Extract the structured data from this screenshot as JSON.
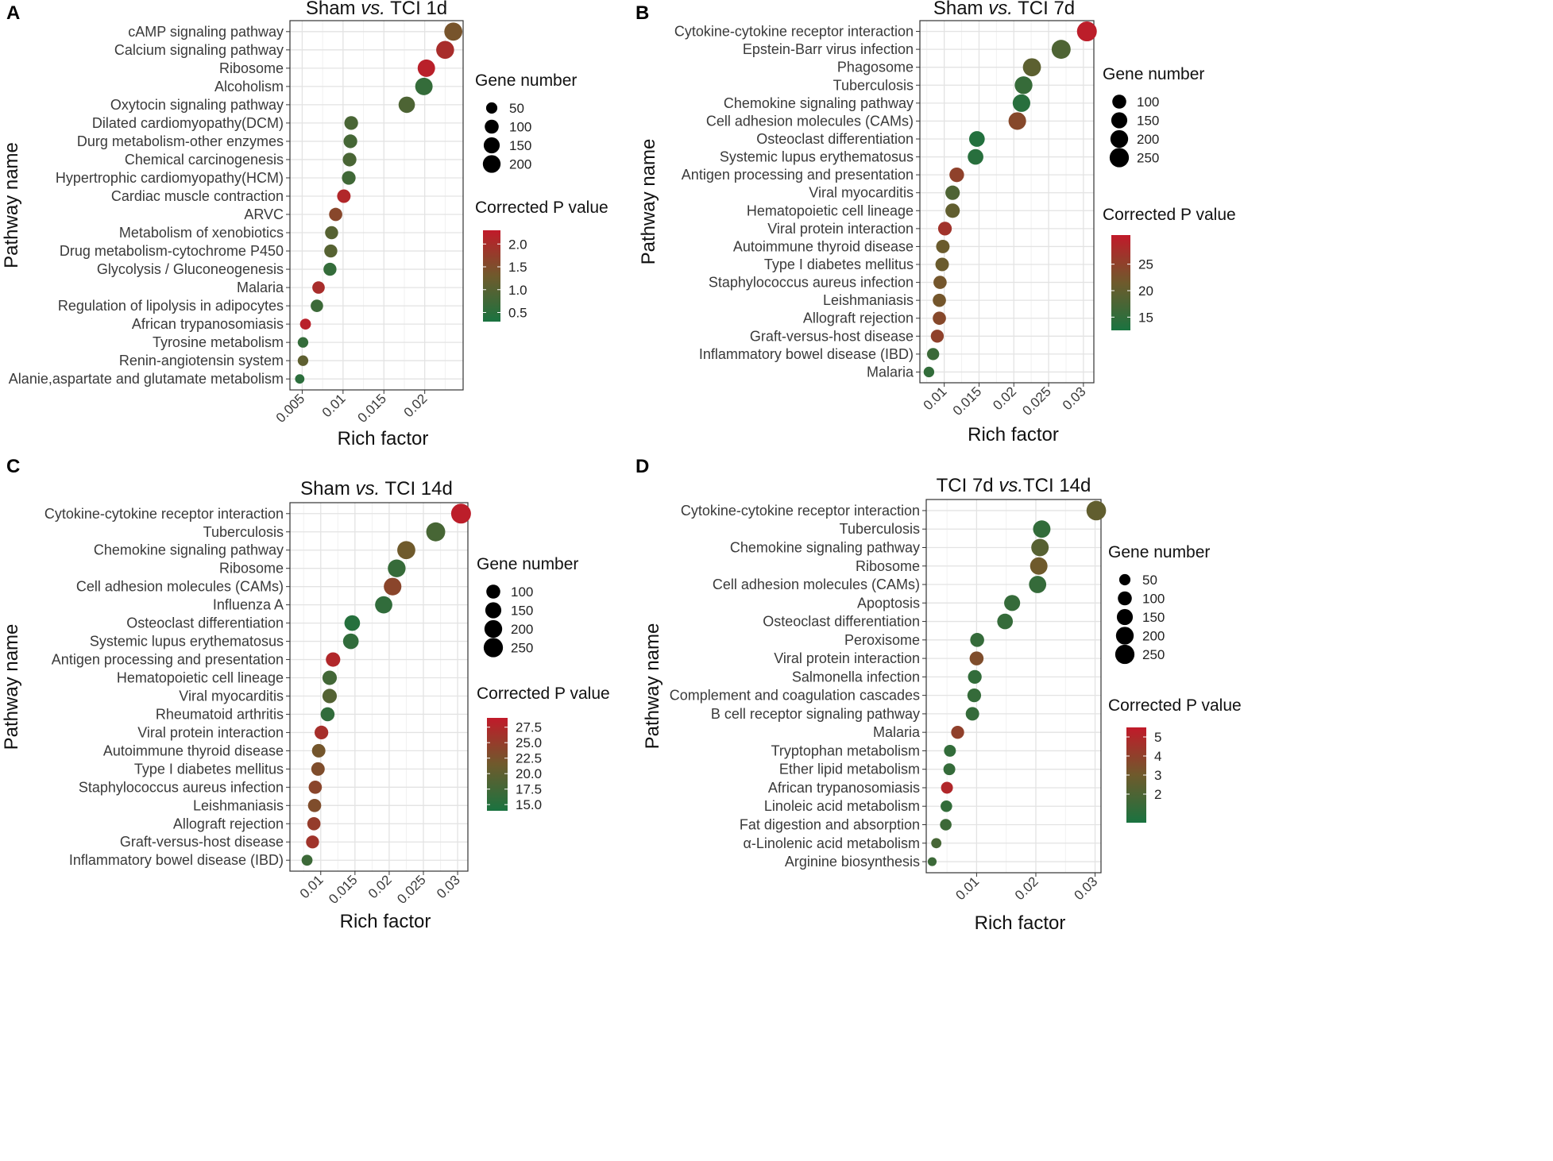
{
  "chart_data": [
    {
      "type": "scatter",
      "panel_label": "A",
      "title": "Sham vs. TCI 1d",
      "title_parts": [
        "Sham ",
        "vs.",
        " TCI 1d"
      ],
      "xlabel": "Rich factor",
      "ylabel": "Pathway name",
      "xlim": [
        0.0035,
        0.0247
      ],
      "xticks": [
        0.005,
        0.01,
        0.015,
        0.02
      ],
      "xtick_labels": [
        "0.005",
        "0.01",
        "0.015",
        "0.02"
      ],
      "xminor": [
        0.0075,
        0.0125,
        0.0175,
        0.0225
      ],
      "size_legend": {
        "title": "Gene number",
        "values": [
          50,
          100,
          150,
          200
        ]
      },
      "color_legend": {
        "title": "Corrected P value",
        "range": [
          0.3,
          2.3
        ],
        "ticks": [
          2.0,
          1.5,
          1.0,
          0.5
        ],
        "tick_labels": [
          "2.0",
          "1.5",
          "1.0",
          "0.5"
        ]
      },
      "pathways": [
        {
          "name": "cAMP signaling pathway",
          "rich_factor": 0.0235,
          "gene_number": 210,
          "p": 1.4
        },
        {
          "name": "Calcium signaling pathway",
          "rich_factor": 0.0225,
          "gene_number": 205,
          "p": 2.0
        },
        {
          "name": "Ribosome",
          "rich_factor": 0.0202,
          "gene_number": 190,
          "p": 2.2
        },
        {
          "name": "Alcoholism",
          "rich_factor": 0.0199,
          "gene_number": 190,
          "p": 0.6
        },
        {
          "name": "Oxytocin signaling pathway",
          "rich_factor": 0.0178,
          "gene_number": 160,
          "p": 0.9
        },
        {
          "name": "Dilated cardiomyopathy(DCM)",
          "rich_factor": 0.011,
          "gene_number": 95,
          "p": 0.85
        },
        {
          "name": "Durg metabolism-other enzymes",
          "rich_factor": 0.0109,
          "gene_number": 95,
          "p": 0.8
        },
        {
          "name": "Chemical carcinogenesis",
          "rich_factor": 0.0108,
          "gene_number": 95,
          "p": 0.85
        },
        {
          "name": "Hypertrophic cardiomyopathy(HCM)",
          "rich_factor": 0.0107,
          "gene_number": 95,
          "p": 0.75
        },
        {
          "name": "Cardiac muscle contraction",
          "rich_factor": 0.0101,
          "gene_number": 90,
          "p": 2.1
        },
        {
          "name": "ARVC",
          "rich_factor": 0.0091,
          "gene_number": 85,
          "p": 1.6
        },
        {
          "name": "Metabolism of xenobiotics",
          "rich_factor": 0.0086,
          "gene_number": 82,
          "p": 1.0
        },
        {
          "name": "Drug metabolism-cytochrome P450",
          "rich_factor": 0.0085,
          "gene_number": 82,
          "p": 1.0
        },
        {
          "name": "Glycolysis / Gluconeogenesis",
          "rich_factor": 0.0084,
          "gene_number": 80,
          "p": 0.6
        },
        {
          "name": "Malaria",
          "rich_factor": 0.007,
          "gene_number": 70,
          "p": 2.0
        },
        {
          "name": "Regulation of lipolysis in adipocytes",
          "rich_factor": 0.0068,
          "gene_number": 70,
          "p": 0.7
        },
        {
          "name": "African trypanosomiasis",
          "rich_factor": 0.0054,
          "gene_number": 45,
          "p": 2.2
        },
        {
          "name": "Tyrosine metabolism",
          "rich_factor": 0.0051,
          "gene_number": 40,
          "p": 0.6
        },
        {
          "name": "Renin-angiotensin system",
          "rich_factor": 0.0051,
          "gene_number": 40,
          "p": 1.1
        },
        {
          "name": "Alanie,aspartate and glutamate metabolism",
          "rich_factor": 0.0047,
          "gene_number": 25,
          "p": 0.5
        }
      ]
    },
    {
      "type": "scatter",
      "panel_label": "B",
      "title": "Sham vs. TCI 7d",
      "title_parts": [
        "Sham ",
        "vs.",
        " TCI 7d"
      ],
      "xlabel": "Rich factor",
      "ylabel": "Pathway name",
      "xlim": [
        0.0065,
        0.0315
      ],
      "xticks": [
        0.01,
        0.015,
        0.02,
        0.025,
        0.03
      ],
      "xtick_labels": [
        "0.01",
        "0.015",
        "0.02",
        "0.025",
        "0.03"
      ],
      "xminor": [
        0.0075,
        0.0125,
        0.0175,
        0.0225,
        0.0275
      ],
      "size_legend": {
        "title": "Gene number",
        "values": [
          100,
          150,
          200,
          250
        ]
      },
      "color_legend": {
        "title": "Corrected P value",
        "range": [
          12.5,
          30.5
        ],
        "ticks": [
          25,
          20,
          15
        ],
        "tick_labels": [
          "25",
          "20",
          "15"
        ]
      },
      "pathways": [
        {
          "name": "Cytokine-cytokine receptor interaction",
          "rich_factor": 0.0305,
          "gene_number": 270,
          "p": 30.0
        },
        {
          "name": "Epstein-Barr virus infection",
          "rich_factor": 0.0268,
          "gene_number": 240,
          "p": 18.0
        },
        {
          "name": "Phagosome",
          "rich_factor": 0.0226,
          "gene_number": 210,
          "p": 19.5
        },
        {
          "name": "Tuberculosis",
          "rich_factor": 0.0214,
          "gene_number": 200,
          "p": 15.5
        },
        {
          "name": "Chemokine signaling pathway",
          "rich_factor": 0.0211,
          "gene_number": 195,
          "p": 14.0
        },
        {
          "name": "Cell adhesion molecules (CAMs)",
          "rich_factor": 0.0205,
          "gene_number": 195,
          "p": 24.0
        },
        {
          "name": "Osteoclast differentiation",
          "rich_factor": 0.0147,
          "gene_number": 140,
          "p": 13.5
        },
        {
          "name": "Systemic lupus erythematosus",
          "rich_factor": 0.0145,
          "gene_number": 140,
          "p": 14.0
        },
        {
          "name": "Antigen processing and presentation",
          "rich_factor": 0.0118,
          "gene_number": 115,
          "p": 25.0
        },
        {
          "name": "Viral myocarditis",
          "rich_factor": 0.0112,
          "gene_number": 110,
          "p": 18.0
        },
        {
          "name": "Hematopoietic cell lineage",
          "rich_factor": 0.0112,
          "gene_number": 110,
          "p": 20.0
        },
        {
          "name": "Viral protein interaction",
          "rich_factor": 0.0101,
          "gene_number": 95,
          "p": 27.0
        },
        {
          "name": "Autoimmune thyroid disease",
          "rich_factor": 0.0098,
          "gene_number": 90,
          "p": 21.0
        },
        {
          "name": "Type I diabetes mellitus",
          "rich_factor": 0.0097,
          "gene_number": 90,
          "p": 21.0
        },
        {
          "name": "Staphylococcus aureus infection",
          "rich_factor": 0.0094,
          "gene_number": 85,
          "p": 22.0
        },
        {
          "name": "Leishmaniasis",
          "rich_factor": 0.0093,
          "gene_number": 85,
          "p": 22.0
        },
        {
          "name": "Allograft rejection",
          "rich_factor": 0.0093,
          "gene_number": 85,
          "p": 24.0
        },
        {
          "name": "Graft-versus-host disease",
          "rich_factor": 0.009,
          "gene_number": 80,
          "p": 25.0
        },
        {
          "name": "Inflammatory bowel disease (IBD)",
          "rich_factor": 0.0084,
          "gene_number": 65,
          "p": 16.0
        },
        {
          "name": "Malaria",
          "rich_factor": 0.0078,
          "gene_number": 40,
          "p": 15.0
        }
      ]
    },
    {
      "type": "scatter",
      "panel_label": "C",
      "title": "Sham vs. TCI 14d",
      "title_parts": [
        "Sham ",
        "vs.",
        " TCI 14d"
      ],
      "xlabel": "Rich factor",
      "ylabel": "Pathway name",
      "xlim": [
        0.0055,
        0.0315
      ],
      "xticks": [
        0.01,
        0.015,
        0.02,
        0.025,
        0.03
      ],
      "xtick_labels": [
        "0.01",
        "0.015",
        "0.02",
        "0.025",
        "0.03"
      ],
      "xminor": [
        0.0075,
        0.0125,
        0.0175,
        0.0225,
        0.0275
      ],
      "size_legend": {
        "title": "Gene number",
        "values": [
          100,
          150,
          200,
          250
        ]
      },
      "color_legend": {
        "title": "Corrected P value",
        "range": [
          14.0,
          29.0
        ],
        "ticks": [
          27.5,
          25.0,
          22.5,
          20.0,
          17.5,
          15.0
        ],
        "tick_labels": [
          "27.5",
          "25.0",
          "22.5",
          "20.0",
          "17.5",
          "15.0"
        ]
      },
      "pathways": [
        {
          "name": "Cytokine-cytokine receptor interaction",
          "rich_factor": 0.0305,
          "gene_number": 270,
          "p": 28.5
        },
        {
          "name": "Tuberculosis",
          "rich_factor": 0.0268,
          "gene_number": 240,
          "p": 18.0
        },
        {
          "name": "Chemokine signaling pathway",
          "rich_factor": 0.0225,
          "gene_number": 210,
          "p": 21.5
        },
        {
          "name": "Ribosome",
          "rich_factor": 0.0211,
          "gene_number": 200,
          "p": 16.5
        },
        {
          "name": "Cell adhesion molecules (CAMs)",
          "rich_factor": 0.0205,
          "gene_number": 195,
          "p": 24.0
        },
        {
          "name": "Influenza A",
          "rich_factor": 0.0192,
          "gene_number": 185,
          "p": 16.0
        },
        {
          "name": "Osteoclast differentiation",
          "rich_factor": 0.0146,
          "gene_number": 140,
          "p": 15.0
        },
        {
          "name": "Systemic lupus erythematosus",
          "rich_factor": 0.0144,
          "gene_number": 140,
          "p": 16.0
        },
        {
          "name": "Antigen processing and presentation",
          "rich_factor": 0.0118,
          "gene_number": 110,
          "p": 27.5
        },
        {
          "name": "Hematopoietic cell lineage",
          "rich_factor": 0.0113,
          "gene_number": 110,
          "p": 17.5
        },
        {
          "name": "Viral myocarditis",
          "rich_factor": 0.0113,
          "gene_number": 110,
          "p": 19.0
        },
        {
          "name": "Rheumatoid arthritis",
          "rich_factor": 0.011,
          "gene_number": 100,
          "p": 16.0
        },
        {
          "name": "Viral protein interaction",
          "rich_factor": 0.0101,
          "gene_number": 95,
          "p": 26.5
        },
        {
          "name": "Autoimmune thyroid disease",
          "rich_factor": 0.0097,
          "gene_number": 90,
          "p": 22.0
        },
        {
          "name": "Type I diabetes mellitus",
          "rich_factor": 0.0096,
          "gene_number": 90,
          "p": 23.0
        },
        {
          "name": "Staphylococcus aureus infection",
          "rich_factor": 0.0092,
          "gene_number": 85,
          "p": 24.0
        },
        {
          "name": "Leishmaniasis",
          "rich_factor": 0.0091,
          "gene_number": 85,
          "p": 23.0
        },
        {
          "name": "Allograft rejection",
          "rich_factor": 0.009,
          "gene_number": 85,
          "p": 25.0
        },
        {
          "name": "Graft-versus-host disease",
          "rich_factor": 0.0088,
          "gene_number": 80,
          "p": 26.0
        },
        {
          "name": "Inflammatory bowel disease (IBD)",
          "rich_factor": 0.008,
          "gene_number": 45,
          "p": 17.0
        }
      ]
    },
    {
      "type": "scatter",
      "panel_label": "D",
      "title": "TCI 7d vs.TCI 14d",
      "title_parts": [
        "TCI 7d ",
        "vs.",
        "TCI 14d"
      ],
      "xlabel": "Rich factor",
      "ylabel": "Pathway name",
      "xlim": [
        0.0015,
        0.031
      ],
      "xticks": [
        0.01,
        0.02,
        0.03
      ],
      "xtick_labels": [
        "0.01",
        "0.02",
        "0.03"
      ],
      "xminor": [
        0.005,
        0.015,
        0.025
      ],
      "size_legend": {
        "title": "Gene number",
        "values": [
          50,
          100,
          150,
          200,
          250
        ]
      },
      "color_legend": {
        "title": "Corrected P value",
        "range": [
          0.5,
          5.5
        ],
        "ticks": [
          5,
          4,
          3,
          2
        ],
        "tick_labels": [
          "5",
          "4",
          "3",
          "2"
        ]
      },
      "pathways": [
        {
          "name": "Cytokine-cytokine receptor interaction",
          "rich_factor": 0.0302,
          "gene_number": 260,
          "p": 2.6
        },
        {
          "name": "Tuberculosis",
          "rich_factor": 0.021,
          "gene_number": 190,
          "p": 1.2
        },
        {
          "name": "Chemokine signaling pathway",
          "rich_factor": 0.0207,
          "gene_number": 190,
          "p": 2.3
        },
        {
          "name": "Ribosome",
          "rich_factor": 0.0205,
          "gene_number": 190,
          "p": 3.0
        },
        {
          "name": "Cell adhesion molecules (CAMs)",
          "rich_factor": 0.0203,
          "gene_number": 185,
          "p": 1.3
        },
        {
          "name": "Apoptosis",
          "rich_factor": 0.016,
          "gene_number": 150,
          "p": 1.3
        },
        {
          "name": "Osteoclast differentiation",
          "rich_factor": 0.0148,
          "gene_number": 140,
          "p": 1.3
        },
        {
          "name": "Peroxisome",
          "rich_factor": 0.0101,
          "gene_number": 100,
          "p": 1.3
        },
        {
          "name": "Viral protein interaction",
          "rich_factor": 0.01,
          "gene_number": 100,
          "p": 3.5
        },
        {
          "name": "Salmonella infection",
          "rich_factor": 0.0097,
          "gene_number": 95,
          "p": 1.2
        },
        {
          "name": "Complement and coagulation cascades",
          "rich_factor": 0.0096,
          "gene_number": 95,
          "p": 1.3
        },
        {
          "name": "B cell receptor signaling pathway",
          "rich_factor": 0.0093,
          "gene_number": 90,
          "p": 1.3
        },
        {
          "name": "Malaria",
          "rich_factor": 0.0068,
          "gene_number": 80,
          "p": 4.0
        },
        {
          "name": "Tryptophan metabolism",
          "rich_factor": 0.0055,
          "gene_number": 60,
          "p": 1.2
        },
        {
          "name": "Ether lipid metabolism",
          "rich_factor": 0.0054,
          "gene_number": 60,
          "p": 1.3
        },
        {
          "name": "African trypanosomiasis",
          "rich_factor": 0.005,
          "gene_number": 60,
          "p": 5.0
        },
        {
          "name": "Linoleic acid metabolism",
          "rich_factor": 0.0049,
          "gene_number": 55,
          "p": 1.2
        },
        {
          "name": "Fat digestion and absorption",
          "rich_factor": 0.0048,
          "gene_number": 55,
          "p": 1.5
        },
        {
          "name": "α-Linolenic acid metabolism",
          "rich_factor": 0.0032,
          "gene_number": 35,
          "p": 1.8
        },
        {
          "name": "Arginine biosynthesis",
          "rich_factor": 0.0025,
          "gene_number": 20,
          "p": 1.5
        }
      ]
    }
  ]
}
